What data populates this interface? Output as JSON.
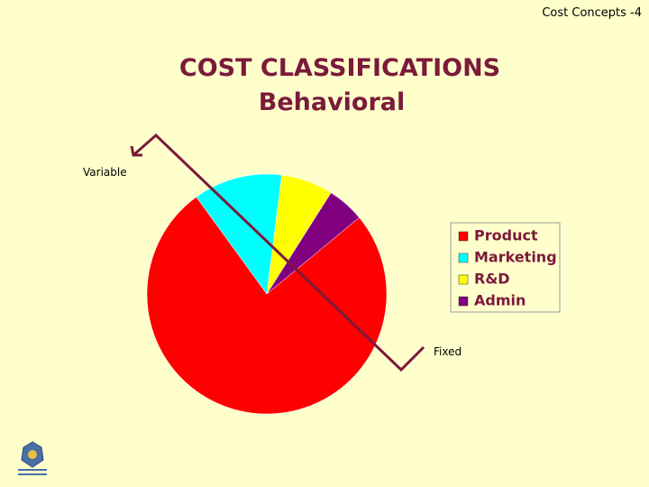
{
  "header": {
    "text": "Cost Concepts -4"
  },
  "chart_data": {
    "type": "pie",
    "title": "COST CLASSIFICATIONS",
    "subtitle": "Behavioral",
    "categories": [
      "Product",
      "Marketing",
      "R&D",
      "Admin"
    ],
    "values": [
      76,
      12,
      7,
      5
    ],
    "colors": [
      "#ff0000",
      "#00ffff",
      "#ffff00",
      "#800080"
    ],
    "annotations": [
      "Variable",
      "Fixed"
    ],
    "legend": "right"
  }
}
